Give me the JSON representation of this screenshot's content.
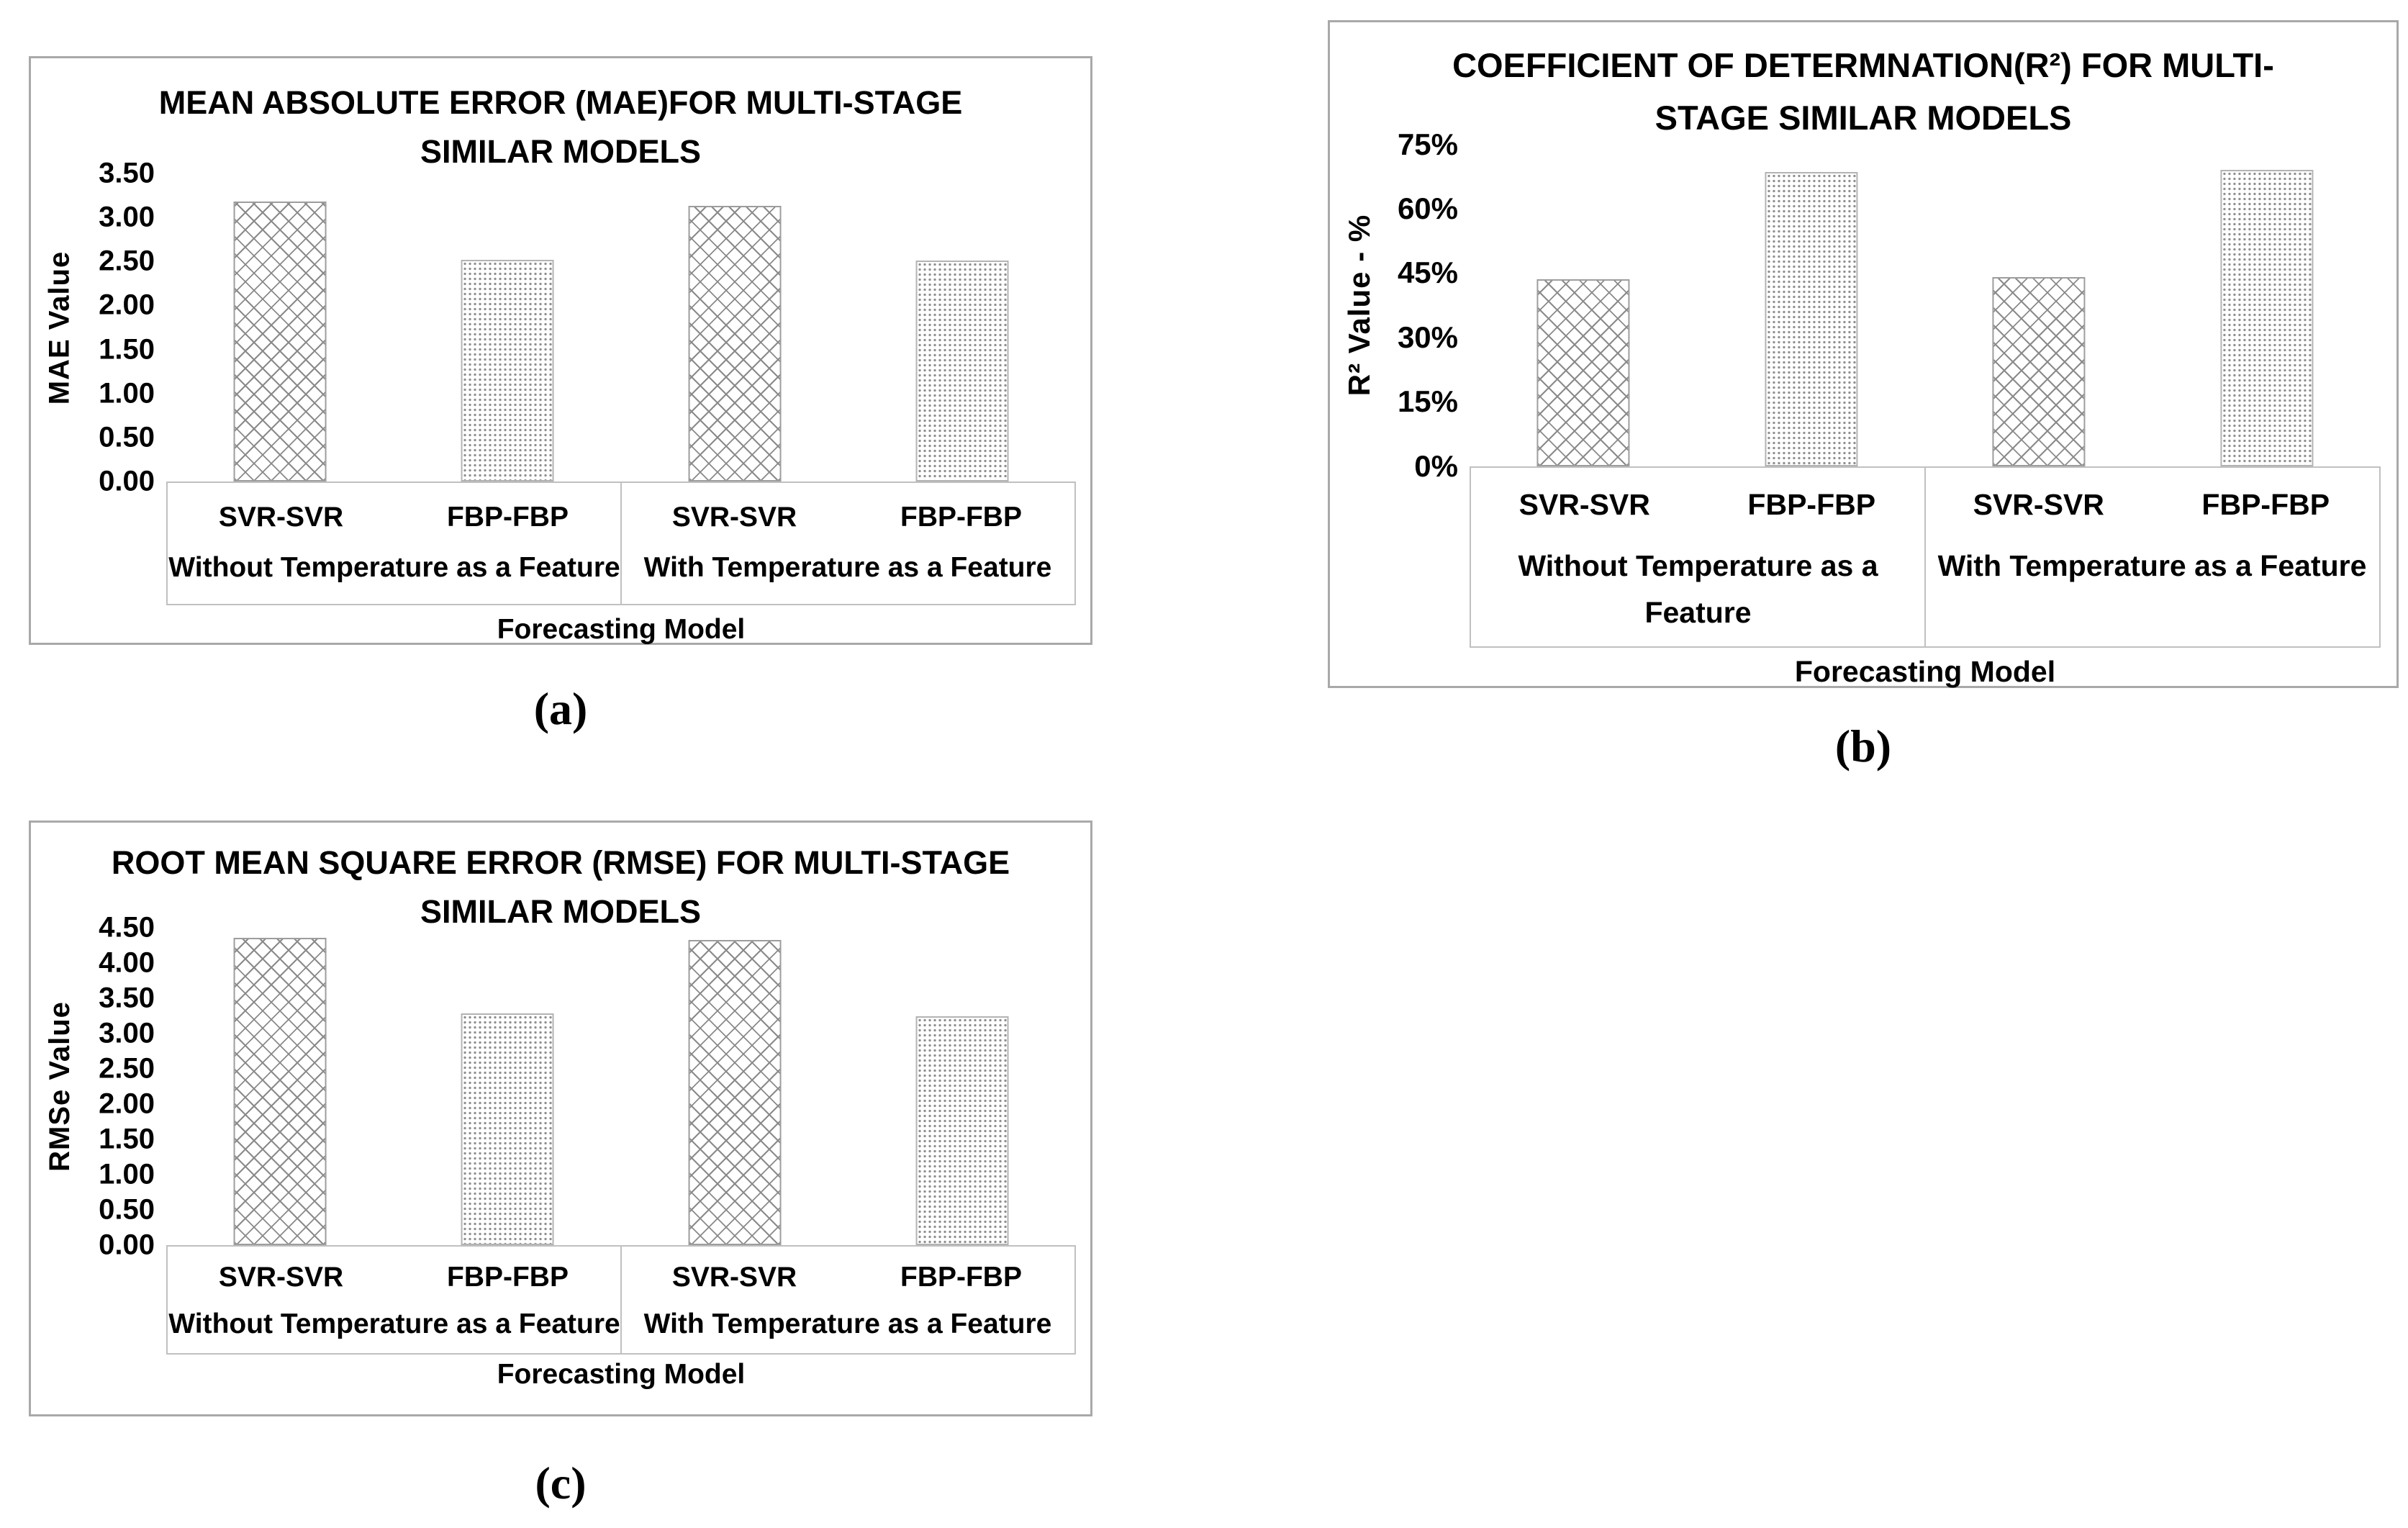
{
  "page": {
    "background": "#ffffff"
  },
  "colors": {
    "panel_border": "#a9a9a9",
    "axis_box_border": "#c0c0c0",
    "pattern_gray": "#8a8a8a",
    "text": "#000000"
  },
  "chart_data": [
    {
      "id": "mae",
      "type": "bar",
      "figure_label": "(a)",
      "title": "MEAN ABSOLUTE ERROR (MAE)FOR MULTI-STAGE SIMILAR MODELS",
      "title_wrap": "MEAN ABSOLUTE ERROR (MAE)FOR MULTI-STAGE\nSIMILAR MODELS",
      "ylabel": "MAE Value",
      "xlabel": "Forecasting Model",
      "ylim": [
        0,
        3.5
      ],
      "yticks": [
        "3.50",
        "3.00",
        "2.50",
        "2.00",
        "1.50",
        "1.00",
        "0.50",
        "0.00"
      ],
      "grid": false,
      "legend": false,
      "categories": [
        "SVR-SVR",
        "FBP-FBP",
        "SVR-SVR",
        "FBP-FBP"
      ],
      "values": [
        3.18,
        2.52,
        3.13,
        2.51
      ],
      "series_patterns": {
        "SVR-SVR": "diamond",
        "FBP-FBP": "dots"
      },
      "groups": [
        {
          "label": "Without Temperature as a Feature",
          "label_wrap": "Without Temperature as a Feature"
        },
        {
          "label": "With Temperature as a Feature",
          "label_wrap": "With Temperature as a Feature"
        }
      ]
    },
    {
      "id": "r-squared",
      "type": "bar",
      "figure_label": "(b)",
      "title": "COEFFICIENT OF DETERMNATION(R²) FOR MULTI-STAGE SIMILAR MODELS",
      "title_wrap": "COEFFICIENT OF DETERMNATION(R²) FOR MULTI-\nSTAGE SIMILAR MODELS",
      "ylabel": "R² Value - %",
      "xlabel": "Forecasting Model",
      "ylim": [
        0,
        75
      ],
      "yticks": [
        "75%",
        "60%",
        "45%",
        "30%",
        "15%",
        "0%"
      ],
      "grid": false,
      "legend": false,
      "categories": [
        "SVR-SVR",
        "FBP-FBP",
        "SVR-SVR",
        "FBP-FBP"
      ],
      "values": [
        43.5,
        68.5,
        44,
        69
      ],
      "values_unit": "%",
      "series_patterns": {
        "SVR-SVR": "diamond",
        "FBP-FBP": "dots"
      },
      "groups": [
        {
          "label": "Without Temperature as a Feature",
          "label_wrap": "Without Temperature as a\nFeature"
        },
        {
          "label": "With Temperature as a Feature",
          "label_wrap": "With Temperature as a Feature"
        }
      ]
    },
    {
      "id": "rmse",
      "type": "bar",
      "figure_label": "(c)",
      "title": "ROOT MEAN SQUARE ERROR (RMSE) FOR MULTI-STAGE SIMILAR MODELS",
      "title_wrap": "ROOT MEAN SQUARE ERROR (RMSE) FOR MULTI-STAGE\nSIMILAR MODELS",
      "ylabel": "RMSe Value",
      "xlabel": "Forecasting Model",
      "ylim": [
        0,
        4.5
      ],
      "yticks": [
        "4.50",
        "4.00",
        "3.50",
        "3.00",
        "2.50",
        "2.00",
        "1.50",
        "1.00",
        "0.50",
        "0.00"
      ],
      "grid": false,
      "legend": false,
      "categories": [
        "SVR-SVR",
        "FBP-FBP",
        "SVR-SVR",
        "FBP-FBP"
      ],
      "values": [
        4.36,
        3.29,
        4.33,
        3.25
      ],
      "series_patterns": {
        "SVR-SVR": "diamond",
        "FBP-FBP": "dots"
      },
      "groups": [
        {
          "label": "Without Temperature as a Feature",
          "label_wrap": "Without Temperature as a Feature"
        },
        {
          "label": "With Temperature as a Feature",
          "label_wrap": "With Temperature as a Feature"
        }
      ]
    }
  ]
}
